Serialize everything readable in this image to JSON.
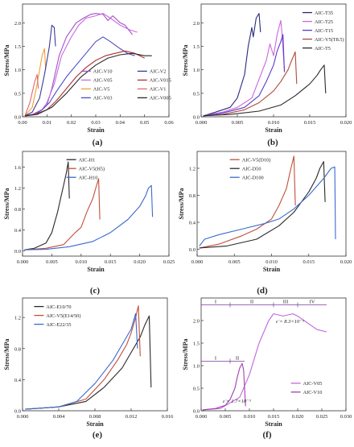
{
  "figure": {
    "panels": [
      "(a)",
      "(b)",
      "(c)",
      "(d)",
      "(e)",
      "(f)"
    ]
  },
  "chart_data": [
    {
      "id": "a",
      "type": "line",
      "panel_label": "(a)",
      "xlabel": "Strain",
      "ylabel": "Stress/MPa",
      "xlim": [
        0,
        0.06
      ],
      "ylim": [
        0,
        2.4
      ],
      "xticks": [
        0,
        0.01,
        0.02,
        0.03,
        0.04,
        0.05,
        0.06
      ],
      "xtick_labels": [
        "0.00",
        "0.01",
        "0.02",
        "0.03",
        "0.04",
        "0.05",
        "0.06"
      ],
      "yticks": [
        0,
        0.5,
        1.0,
        1.5,
        2.0
      ],
      "ytick_labels": [
        "0.0",
        "0.5",
        "1.0",
        "1.5",
        "2.0"
      ],
      "legend": "bottom-right",
      "legend_columns": 2,
      "series": [
        {
          "name": "AIC-V10",
          "color": "#a450c8",
          "x": [
            0.001,
            0.004,
            0.008,
            0.01,
            0.012,
            0.015,
            0.018,
            0.02,
            0.022,
            0.025,
            0.028,
            0.03,
            0.033,
            0.035,
            0.037,
            0.04,
            0.042,
            0.045
          ],
          "y": [
            0.02,
            0.05,
            0.15,
            0.25,
            0.6,
            1.3,
            1.7,
            1.85,
            2.0,
            2.1,
            2.18,
            2.2,
            2.18,
            2.05,
            2.15,
            2.0,
            1.95,
            1.75
          ]
        },
        {
          "name": "AIC-V05",
          "color": "#c66ae0",
          "x": [
            0.001,
            0.005,
            0.008,
            0.01,
            0.013,
            0.016,
            0.02,
            0.023,
            0.026,
            0.03,
            0.033,
            0.036,
            0.04,
            0.044,
            0.047
          ],
          "y": [
            0.02,
            0.05,
            0.15,
            0.3,
            0.7,
            1.3,
            1.7,
            1.95,
            2.1,
            2.15,
            2.2,
            2.1,
            1.95,
            1.85,
            1.8
          ]
        },
        {
          "name": "AIC-V5",
          "color": "#f0a030",
          "x": [
            0.001,
            0.004,
            0.006,
            0.008,
            0.009,
            0.0095
          ],
          "y": [
            0.02,
            0.2,
            0.7,
            1.3,
            1.45,
            1.0
          ]
        },
        {
          "name": "AIC-V03",
          "color": "#4c4cc8",
          "x": [
            0.001,
            0.005,
            0.008,
            0.011,
            0.014,
            0.018,
            0.022,
            0.026,
            0.03,
            0.033,
            0.036,
            0.04,
            0.043,
            0.046
          ],
          "y": [
            0.02,
            0.05,
            0.15,
            0.3,
            0.55,
            0.85,
            1.1,
            1.35,
            1.6,
            1.7,
            1.6,
            1.45,
            1.35,
            1.3
          ]
        },
        {
          "name": "AIC-V2",
          "color": "#3a3a9a",
          "x": [
            0.001,
            0.004,
            0.007,
            0.009,
            0.011,
            0.012,
            0.013,
            0.0135
          ],
          "y": [
            0.02,
            0.1,
            0.4,
            0.9,
            1.5,
            1.95,
            1.9,
            1.5
          ]
        },
        {
          "name": "AIC-V015",
          "color": "#b03030",
          "x": [
            0.001,
            0.005,
            0.01,
            0.014,
            0.018,
            0.022,
            0.026,
            0.03,
            0.034,
            0.038,
            0.042,
            0.046,
            0.05
          ],
          "y": [
            0.02,
            0.05,
            0.15,
            0.35,
            0.6,
            0.85,
            1.05,
            1.2,
            1.3,
            1.35,
            1.4,
            1.35,
            1.25
          ]
        },
        {
          "name": "AIC-V1",
          "color": "#e06a6a",
          "x": [
            0.001,
            0.003,
            0.005,
            0.006,
            0.0065
          ],
          "y": [
            0.02,
            0.3,
            0.75,
            0.9,
            0.6
          ]
        },
        {
          "name": "AIC-V005",
          "color": "#2a2a2a",
          "x": [
            0.001,
            0.006,
            0.012,
            0.018,
            0.024,
            0.03,
            0.035,
            0.04,
            0.045,
            0.05,
            0.053
          ],
          "y": [
            0.02,
            0.05,
            0.2,
            0.5,
            0.85,
            1.1,
            1.25,
            1.32,
            1.35,
            1.3,
            1.3
          ]
        }
      ]
    },
    {
      "id": "b",
      "type": "line",
      "panel_label": "(b)",
      "xlabel": "Strain",
      "ylabel": "Stress/MPa",
      "xlim": [
        0,
        0.02
      ],
      "ylim": [
        0,
        2.4
      ],
      "xticks": [
        0,
        0.005,
        0.01,
        0.015,
        0.02
      ],
      "xtick_labels": [
        "0.000",
        "0.005",
        "0.010",
        "0.015",
        "0.020"
      ],
      "yticks": [
        0,
        0.5,
        1.0,
        1.5,
        2.0
      ],
      "ytick_labels": [
        "0.0",
        "0.5",
        "1.0",
        "1.5",
        "2.0"
      ],
      "legend": "top-right",
      "series": [
        {
          "name": "AIC-T35",
          "color": "#2a2a80",
          "x": [
            0.0003,
            0.002,
            0.004,
            0.005,
            0.006,
            0.0065,
            0.007,
            0.0072,
            0.0076,
            0.008,
            0.0082
          ],
          "y": [
            0.02,
            0.1,
            0.2,
            0.4,
            0.9,
            1.5,
            1.9,
            1.7,
            2.1,
            2.2,
            1.8
          ]
        },
        {
          "name": "AIC-T25",
          "color": "#cc66dd",
          "x": [
            0.0003,
            0.003,
            0.005,
            0.007,
            0.008,
            0.009,
            0.0095,
            0.01,
            0.0105,
            0.011,
            0.0112,
            0.0115
          ],
          "y": [
            0.02,
            0.1,
            0.2,
            0.4,
            0.8,
            1.2,
            1.55,
            1.3,
            1.75,
            2.05,
            1.7,
            1.0
          ]
        },
        {
          "name": "AIC-T15",
          "color": "#5a3ac8",
          "x": [
            0.0003,
            0.003,
            0.006,
            0.008,
            0.009,
            0.01,
            0.0105,
            0.011,
            0.0113,
            0.0115
          ],
          "y": [
            0.02,
            0.08,
            0.2,
            0.45,
            0.75,
            1.1,
            1.4,
            1.6,
            1.75,
            0.95
          ]
        },
        {
          "name": "AIC-V5(T8.5)",
          "color": "#b04a3a",
          "x": [
            0.0003,
            0.003,
            0.006,
            0.008,
            0.01,
            0.011,
            0.012,
            0.0125,
            0.013,
            0.0132
          ],
          "y": [
            0.02,
            0.05,
            0.15,
            0.3,
            0.55,
            0.75,
            1.0,
            1.2,
            1.38,
            0.7
          ]
        },
        {
          "name": "AIC-T5",
          "color": "#2a2a2a",
          "x": [
            0.0003,
            0.004,
            0.008,
            0.011,
            0.013,
            0.015,
            0.016,
            0.0165,
            0.017,
            0.0172
          ],
          "y": [
            0.02,
            0.05,
            0.12,
            0.25,
            0.45,
            0.7,
            0.88,
            1.0,
            1.1,
            0.5
          ]
        }
      ]
    },
    {
      "id": "c",
      "type": "line",
      "panel_label": "(c)",
      "xlabel": "Strain",
      "ylabel": "Stress/MPa",
      "xlim": [
        0,
        0.025
      ],
      "ylim": [
        -0.1,
        1.9
      ],
      "xticks": [
        0,
        0.005,
        0.01,
        0.015,
        0.02,
        0.025
      ],
      "xtick_labels": [
        "0.000",
        "0.005",
        "0.010",
        "0.015",
        "0.020",
        "0.025"
      ],
      "yticks": [
        0,
        0.4,
        0.8,
        1.2,
        1.6
      ],
      "ytick_labels": [
        "0.0",
        "0.4",
        "0.8",
        "1.2",
        "1.6"
      ],
      "legend": "top-left",
      "series": [
        {
          "name": "AIC-H1",
          "color": "#2a2a2a",
          "x": [
            0.0003,
            0.002,
            0.004,
            0.005,
            0.006,
            0.0065,
            0.007,
            0.0075,
            0.0078,
            0.008
          ],
          "y": [
            0.02,
            0.05,
            0.15,
            0.35,
            0.75,
            1.0,
            1.25,
            1.5,
            1.7,
            1.0
          ]
        },
        {
          "name": "AIC-V5(H5)",
          "color": "#c0503a",
          "x": [
            0.0003,
            0.004,
            0.007,
            0.009,
            0.01,
            0.011,
            0.012,
            0.0125,
            0.013,
            0.0132
          ],
          "y": [
            0.02,
            0.05,
            0.12,
            0.35,
            0.45,
            0.75,
            1.0,
            1.2,
            1.38,
            0.6
          ]
        },
        {
          "name": "AIC-H10",
          "color": "#3a6ad0",
          "x": [
            0.0003,
            0.004,
            0.008,
            0.012,
            0.015,
            0.018,
            0.02,
            0.021,
            0.0215,
            0.022,
            0.0222
          ],
          "y": [
            0.02,
            0.03,
            0.08,
            0.18,
            0.35,
            0.6,
            0.85,
            1.05,
            1.2,
            1.25,
            0.65
          ]
        }
      ]
    },
    {
      "id": "d",
      "type": "line",
      "panel_label": "(d)",
      "xlabel": "Strain",
      "ylabel": "Stress/MPa",
      "xlim": [
        0,
        0.02
      ],
      "ylim": [
        -0.1,
        1.45
      ],
      "xticks": [
        0,
        0.005,
        0.01,
        0.015,
        0.02
      ],
      "xtick_labels": [
        "0.000",
        "0.005",
        "0.010",
        "0.015",
        "0.020"
      ],
      "yticks": [
        0,
        0.4,
        0.8,
        1.2
      ],
      "ytick_labels": [
        "0.0",
        "0.4",
        "0.8",
        "1.2"
      ],
      "legend": "top-left",
      "series": [
        {
          "name": "AIC-V5(D10)",
          "color": "#c0503a",
          "x": [
            0.0003,
            0.003,
            0.006,
            0.008,
            0.01,
            0.011,
            0.012,
            0.0125,
            0.013,
            0.0132
          ],
          "y": [
            0.02,
            0.08,
            0.2,
            0.3,
            0.45,
            0.65,
            0.9,
            1.15,
            1.38,
            0.65
          ]
        },
        {
          "name": "AIC-D50",
          "color": "#2a2a2a",
          "x": [
            0.0003,
            0.004,
            0.008,
            0.011,
            0.013,
            0.015,
            0.016,
            0.0165,
            0.017,
            0.0172
          ],
          "y": [
            0.02,
            0.05,
            0.15,
            0.35,
            0.55,
            0.85,
            1.05,
            1.2,
            1.3,
            0.7
          ]
        },
        {
          "name": "AIC-D100",
          "color": "#3a6ad0",
          "x": [
            0.0003,
            0.001,
            0.003,
            0.006,
            0.009,
            0.011,
            0.013,
            0.015,
            0.017,
            0.018,
            0.0185,
            0.0186
          ],
          "y": [
            0.05,
            0.15,
            0.22,
            0.3,
            0.38,
            0.45,
            0.6,
            0.8,
            1.05,
            1.2,
            1.22,
            0.15
          ]
        }
      ]
    },
    {
      "id": "e",
      "type": "line",
      "panel_label": "(e)",
      "xlabel": "Strain",
      "ylabel": "Stress/MPa",
      "xlim": [
        0,
        0.016
      ],
      "ylim": [
        0,
        1.45
      ],
      "xticks": [
        0,
        0.004,
        0.008,
        0.012,
        0.016
      ],
      "xtick_labels": [
        "0.000",
        "0.004",
        "0.008",
        "0.012",
        "0.016"
      ],
      "yticks": [
        0,
        0.4,
        0.8,
        1.2
      ],
      "ytick_labels": [
        "0.0",
        "0.4",
        "0.8",
        "1.2"
      ],
      "legend": "top-left",
      "series": [
        {
          "name": "AIC-E10/70",
          "color": "#2a2a2a",
          "x": [
            0.0003,
            0.004,
            0.007,
            0.009,
            0.011,
            0.012,
            0.013,
            0.0135,
            0.014,
            0.0142
          ],
          "y": [
            0.02,
            0.05,
            0.12,
            0.3,
            0.55,
            0.75,
            0.95,
            1.1,
            1.22,
            0.3
          ]
        },
        {
          "name": "AIC-V5(E14/50)",
          "color": "#c0503a",
          "x": [
            0.0003,
            0.004,
            0.007,
            0.009,
            0.0105,
            0.0115,
            0.012,
            0.0125,
            0.0128,
            0.013
          ],
          "y": [
            0.02,
            0.05,
            0.15,
            0.4,
            0.65,
            0.85,
            1.0,
            1.2,
            1.35,
            0.7
          ]
        },
        {
          "name": "AIC-E22/35",
          "color": "#3a6ad0",
          "x": [
            0.0003,
            0.004,
            0.006,
            0.008,
            0.009,
            0.01,
            0.011,
            0.012,
            0.0125,
            0.0127
          ],
          "y": [
            0.02,
            0.05,
            0.12,
            0.35,
            0.5,
            0.65,
            0.85,
            1.05,
            1.25,
            0.8
          ]
        }
      ]
    },
    {
      "id": "f",
      "type": "line",
      "panel_label": "(f)",
      "xlabel": "Strain",
      "ylabel": "Stress/MPa",
      "xlim": [
        0,
        0.03
      ],
      "ylim": [
        0,
        2.5
      ],
      "xticks": [
        0,
        0.005,
        0.01,
        0.015,
        0.02,
        0.025,
        0.03
      ],
      "xtick_labels": [
        "0.000",
        "0.005",
        "0.010",
        "0.015",
        "0.020",
        "0.025",
        "0.030"
      ],
      "yticks": [
        0,
        0.5,
        1.0,
        1.5,
        2.0
      ],
      "ytick_labels": [
        "0.0",
        "0.5",
        "1.0",
        "1.5",
        "2.0"
      ],
      "legend": "bottom-right",
      "annotations": {
        "rate_top": "ε̇ = 8.3×10⁻³",
        "rate_bottom": "ε̇ = 1.7×10⁻³",
        "stages_top": [
          "I",
          "II",
          "III",
          "IV"
        ],
        "stages_bottom": [
          "I",
          "II"
        ]
      },
      "series": [
        {
          "name": "AIC-V05",
          "color": "#c066e0",
          "x": [
            0.0003,
            0.004,
            0.008,
            0.01,
            0.012,
            0.014,
            0.015,
            0.017,
            0.019,
            0.02,
            0.022,
            0.024,
            0.026
          ],
          "y": [
            0.02,
            0.05,
            0.3,
            0.8,
            1.5,
            2.0,
            2.15,
            2.1,
            2.15,
            2.1,
            1.95,
            1.8,
            1.75
          ]
        },
        {
          "name": "AIC-V10",
          "color": "#a040b0",
          "x": [
            0.0003,
            0.003,
            0.005,
            0.006,
            0.007,
            0.0075,
            0.008,
            0.0085,
            0.0088,
            0.009,
            0.0092
          ],
          "y": [
            0.02,
            0.05,
            0.12,
            0.25,
            0.5,
            0.75,
            0.95,
            1.05,
            0.9,
            0.5,
            0.1
          ]
        }
      ]
    }
  ]
}
